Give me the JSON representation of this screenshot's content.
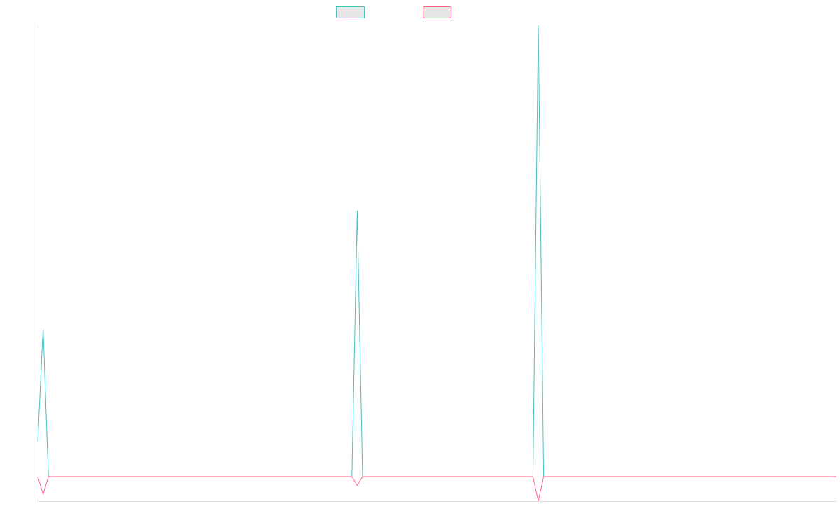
{
  "chart_data": {
    "type": "line",
    "title": "",
    "xlabel": "",
    "ylabel": "",
    "grid": false,
    "legend_position": "top-center",
    "colors": {
      "background": "#ffffff",
      "axis": "#e0e0e0",
      "legend_fill": "#e6e6e6"
    },
    "x": [
      0,
      1,
      2,
      3,
      4,
      5,
      6,
      7,
      8,
      9,
      10,
      11,
      12,
      13,
      14,
      15,
      16,
      17,
      18,
      19,
      20,
      21,
      22,
      23,
      24,
      25,
      26,
      27,
      28,
      29,
      30,
      31,
      32,
      33,
      34,
      35,
      36,
      37,
      38,
      39,
      40,
      41,
      42,
      43,
      44,
      45,
      46,
      47,
      48,
      49,
      50,
      51,
      52,
      53,
      54,
      55,
      56,
      57,
      58,
      59,
      60,
      61,
      62,
      63,
      64,
      65,
      66,
      67,
      68,
      69,
      70,
      71,
      72,
      73,
      74,
      75,
      76,
      77,
      78,
      79,
      80,
      81,
      82,
      83,
      84,
      85,
      86,
      87,
      88,
      89,
      90,
      91,
      92,
      93,
      94,
      95,
      96,
      97,
      98,
      99,
      100,
      101,
      102,
      103,
      104,
      105,
      106,
      107,
      108,
      109,
      110,
      111,
      112,
      113,
      114,
      115,
      116,
      117,
      118,
      119,
      120,
      121,
      122,
      123,
      124,
      125,
      126,
      127,
      128,
      129,
      130,
      131,
      132,
      133,
      134,
      135,
      136,
      137,
      138,
      139,
      140,
      141,
      142,
      143,
      144,
      145,
      146,
      147,
      148,
      149,
      150
    ],
    "xlim": [
      0,
      150
    ],
    "ylim": [
      -1.4,
      25.8
    ],
    "series": [
      {
        "color": "#4bc0c0",
        "values": [
          2,
          8.5,
          0,
          0,
          0,
          0,
          0,
          0,
          0,
          0,
          0,
          0,
          0,
          0,
          0,
          0,
          0,
          0,
          0,
          0,
          0,
          0,
          0,
          0,
          0,
          0,
          0,
          0,
          0,
          0,
          0,
          0,
          0,
          0,
          0,
          0,
          0,
          0,
          0,
          0,
          0,
          0,
          0,
          0,
          0,
          0,
          0,
          0,
          0,
          0,
          0,
          0,
          0,
          0,
          0,
          0,
          0,
          0,
          0,
          0,
          15.2,
          0,
          0,
          0,
          0,
          0,
          0,
          0,
          0,
          0,
          0,
          0,
          0,
          0,
          0,
          0,
          0,
          0,
          0,
          0,
          0,
          0,
          0,
          0,
          0,
          0,
          0,
          0,
          0,
          0,
          0,
          0,
          0,
          0,
          25.8,
          0,
          0,
          0,
          0,
          0,
          0,
          0,
          0,
          0,
          0,
          0,
          0,
          0,
          0,
          0,
          0,
          0,
          0,
          0,
          0,
          0,
          0,
          0,
          0,
          0,
          0,
          0,
          0,
          0,
          0,
          0,
          0,
          0,
          0,
          0,
          0,
          0,
          0,
          0,
          0,
          0,
          0,
          0,
          0,
          0,
          0,
          0,
          0,
          0,
          0,
          0,
          0,
          0,
          0,
          0,
          0
        ]
      },
      {
        "color": "#ff6384",
        "values": [
          0,
          -1,
          0,
          0,
          0,
          0,
          0,
          0,
          0,
          0,
          0,
          0,
          0,
          0,
          0,
          0,
          0,
          0,
          0,
          0,
          0,
          0,
          0,
          0,
          0,
          0,
          0,
          0,
          0,
          0,
          0,
          0,
          0,
          0,
          0,
          0,
          0,
          0,
          0,
          0,
          0,
          0,
          0,
          0,
          0,
          0,
          0,
          0,
          0,
          0,
          0,
          0,
          0,
          0,
          0,
          0,
          0,
          0,
          0,
          0,
          -0.5,
          0,
          0,
          0,
          0,
          0,
          0,
          0,
          0,
          0,
          0,
          0,
          0,
          0,
          0,
          0,
          0,
          0,
          0,
          0,
          0,
          0,
          0,
          0,
          0,
          0,
          0,
          0,
          0,
          0,
          0,
          0,
          0,
          0,
          -1.4,
          0,
          0,
          0,
          0,
          0,
          0,
          0,
          0,
          0,
          0,
          0,
          0,
          0,
          0,
          0,
          0,
          0,
          0,
          0,
          0,
          0,
          0,
          0,
          0,
          0,
          0,
          0,
          0,
          0,
          0,
          0,
          0,
          0,
          0,
          0,
          0,
          0,
          0,
          0,
          0,
          0,
          0,
          0,
          0,
          0,
          0,
          0,
          0,
          0,
          0,
          0,
          0,
          0,
          0,
          0,
          0
        ]
      }
    ]
  }
}
